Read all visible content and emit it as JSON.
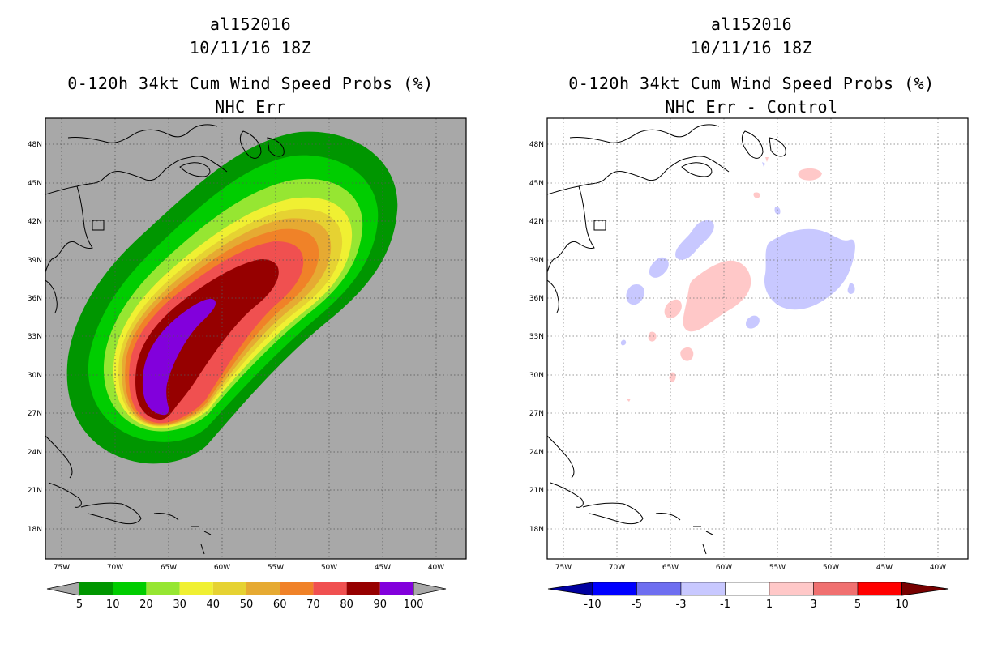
{
  "left": {
    "storm_id": "al152016",
    "datetime": "10/11/16 18Z",
    "title": "0-120h 34kt Cum Wind Speed Probs (%)",
    "subtitle": "NHC Err",
    "lat_labels": [
      "48N",
      "45N",
      "42N",
      "39N",
      "36N",
      "33N",
      "30N",
      "27N",
      "24N",
      "21N",
      "18N"
    ],
    "lon_labels": [
      "75W",
      "70W",
      "65W",
      "60W",
      "55W",
      "50W",
      "45W",
      "40W"
    ],
    "colorbar": {
      "labels": [
        "5",
        "10",
        "20",
        "30",
        "40",
        "50",
        "60",
        "70",
        "80",
        "90",
        "100"
      ],
      "colors": [
        "#009600",
        "#00cd00",
        "#96e632",
        "#f0f032",
        "#e6d232",
        "#e6aa32",
        "#f08228",
        "#f05050",
        "#960000",
        "#8200dc"
      ]
    }
  },
  "right": {
    "storm_id": "al152016",
    "datetime": "10/11/16 18Z",
    "title": "0-120h 34kt Cum Wind Speed Probs (%)",
    "subtitle": "NHC Err - Control",
    "lat_labels": [
      "48N",
      "45N",
      "42N",
      "39N",
      "36N",
      "33N",
      "30N",
      "27N",
      "24N",
      "21N",
      "18N"
    ],
    "lon_labels": [
      "75W",
      "70W",
      "65W",
      "60W",
      "55W",
      "50W",
      "45W",
      "40W"
    ],
    "colorbar": {
      "labels": [
        "-10",
        "-5",
        "-3",
        "-1",
        "1",
        "3",
        "5",
        "10"
      ],
      "colors": [
        "#0000a0",
        "#0000ff",
        "#6e6ef0",
        "#c8c8ff",
        "#ffffff",
        "#ffc8c8",
        "#f07070",
        "#ff0000",
        "#780000"
      ]
    }
  }
}
